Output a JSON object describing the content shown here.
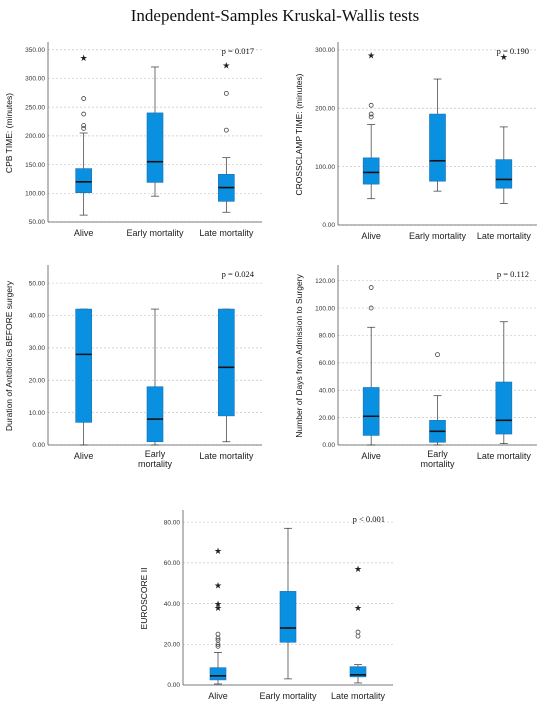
{
  "title": "Independent-Samples Kruskal-Wallis tests",
  "colors": {
    "box": "#0a90e0",
    "grid": "#c8c8c8"
  },
  "chart_data": [
    {
      "type": "box",
      "ylabel": "CPB TIME: (minutes)",
      "pvalue": "p = 0.017",
      "ylim": [
        50,
        360
      ],
      "yticks": [
        50,
        100,
        150,
        200,
        250,
        300,
        350
      ],
      "ytick_labels": [
        "50.00",
        "100.00",
        "150.00",
        "200.00",
        "250.00",
        "300.00",
        "350.00"
      ],
      "categories": [
        "Alive",
        "Early mortality",
        "Late mortality"
      ],
      "boxes": [
        {
          "q1": 101,
          "median": 120,
          "q3": 143,
          "whisker_low": 62,
          "whisker_high": 205,
          "outliers": [
            265,
            238,
            218,
            213
          ],
          "extremes": [
            336
          ]
        },
        {
          "q1": 119,
          "median": 155,
          "q3": 240,
          "whisker_low": 95,
          "whisker_high": 320,
          "outliers": [],
          "extremes": []
        },
        {
          "q1": 86,
          "median": 110,
          "q3": 133,
          "whisker_low": 67,
          "whisker_high": 162,
          "outliers": [
            274,
            210
          ],
          "extremes": [
            323
          ]
        }
      ]
    },
    {
      "type": "box",
      "ylabel": "CROSSCLAMP TIME: (minutes)",
      "pvalue": "p = 0.190",
      "ylim": [
        0,
        310
      ],
      "yticks": [
        0,
        100,
        200,
        300
      ],
      "ytick_labels": [
        "0.00",
        "100.00",
        "200.00",
        "300.00"
      ],
      "categories": [
        "Alive",
        "Early mortality",
        "Late mortality"
      ],
      "boxes": [
        {
          "q1": 70,
          "median": 90,
          "q3": 115,
          "whisker_low": 45,
          "whisker_high": 172,
          "outliers": [
            205,
            190,
            185
          ],
          "extremes": [
            291
          ]
        },
        {
          "q1": 75,
          "median": 110,
          "q3": 190,
          "whisker_low": 58,
          "whisker_high": 250,
          "outliers": [],
          "extremes": []
        },
        {
          "q1": 63,
          "median": 78,
          "q3": 112,
          "whisker_low": 37,
          "whisker_high": 168,
          "outliers": [],
          "extremes": [
            288
          ]
        }
      ]
    },
    {
      "type": "box",
      "ylabel": "Duration of Antibiotics BEFORE surgery",
      "pvalue": "p = 0.024",
      "ylim": [
        0,
        55
      ],
      "yticks": [
        0,
        10,
        20,
        30,
        40,
        50
      ],
      "ytick_labels": [
        "0.00",
        "10.00",
        "20.00",
        "30.00",
        "40.00",
        "50.00"
      ],
      "categories": [
        "Alive",
        "Early mortality",
        "Late mortality"
      ],
      "boxes": [
        {
          "q1": 7,
          "median": 28,
          "q3": 42,
          "whisker_low": 0,
          "whisker_high": 42,
          "outliers": [],
          "extremes": []
        },
        {
          "q1": 1,
          "median": 8,
          "q3": 18,
          "whisker_low": 0,
          "whisker_high": 42,
          "outliers": [],
          "extremes": []
        },
        {
          "q1": 9,
          "median": 24,
          "q3": 42,
          "whisker_low": 1,
          "whisker_high": 42,
          "outliers": [],
          "extremes": []
        }
      ]
    },
    {
      "type": "box",
      "ylabel": "Number of Days from Admission to Surgery",
      "pvalue": "p = 0.112",
      "ylim": [
        0,
        130
      ],
      "yticks": [
        0,
        20,
        40,
        60,
        80,
        100,
        120
      ],
      "ytick_labels": [
        "0.00",
        "20.00",
        "40.00",
        "60.00",
        "80.00",
        "100.00",
        "120.00"
      ],
      "categories": [
        "Alive",
        "Early mortality",
        "Late mortality"
      ],
      "boxes": [
        {
          "q1": 7,
          "median": 21,
          "q3": 42,
          "whisker_low": 0,
          "whisker_high": 86,
          "outliers": [
            115,
            100
          ],
          "extremes": []
        },
        {
          "q1": 2,
          "median": 10,
          "q3": 18,
          "whisker_low": 0,
          "whisker_high": 36,
          "outliers": [
            66
          ],
          "extremes": []
        },
        {
          "q1": 8,
          "median": 18,
          "q3": 46,
          "whisker_low": 1,
          "whisker_high": 90,
          "outliers": [],
          "extremes": []
        }
      ]
    },
    {
      "type": "box",
      "ylabel": "EUROSCORE II",
      "pvalue": "p < 0.001",
      "ylim": [
        0,
        85
      ],
      "yticks": [
        0,
        20,
        40,
        60,
        80
      ],
      "ytick_labels": [
        "0.00",
        "20.00",
        "40.00",
        "60.00",
        "80.00"
      ],
      "categories": [
        "Alive",
        "Early mortality",
        "Late mortality"
      ],
      "boxes": [
        {
          "q1": 2.5,
          "median": 4.5,
          "q3": 8.5,
          "whisker_low": 0.5,
          "whisker_high": 16,
          "outliers": [
            25,
            23,
            22,
            20,
            19
          ],
          "extremes": [
            66,
            49,
            40,
            38
          ]
        },
        {
          "q1": 21,
          "median": 28,
          "q3": 46,
          "whisker_low": 3,
          "whisker_high": 77,
          "outliers": [],
          "extremes": []
        },
        {
          "q1": 4,
          "median": 5,
          "q3": 9,
          "whisker_low": 1,
          "whisker_high": 10,
          "outliers": [
            26,
            24
          ],
          "extremes": [
            57,
            38
          ]
        }
      ]
    }
  ]
}
